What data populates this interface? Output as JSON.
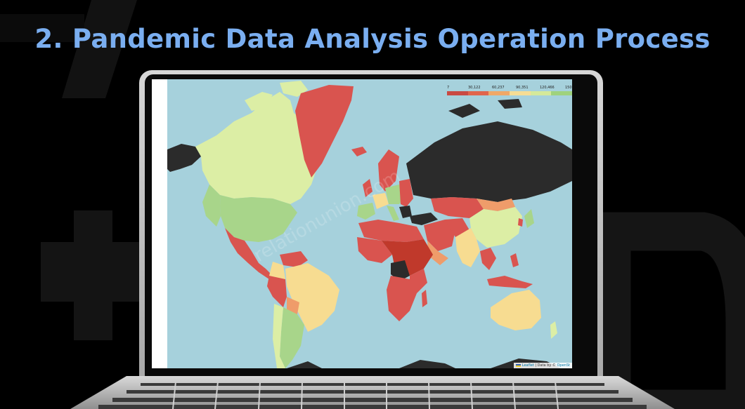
{
  "slide": {
    "title": "2. Pandemic Data Analysis Operation Process"
  },
  "map": {
    "legend": {
      "ticks": [
        "7",
        "30,122",
        "60,237",
        "90,351",
        "120,466",
        "150"
      ],
      "colors": [
        "#c94a43",
        "#e0654c",
        "#f0a868",
        "#f6dd94",
        "#d5e99a",
        "#9fd27e"
      ]
    },
    "attribution": {
      "leaflet": "Leaflet",
      "separator": " | Data by © ",
      "source": "OpenSt"
    },
    "watermark": "relationunion.com"
  },
  "colors": {
    "ocean": "#a6d1dc",
    "red": "#d9544f",
    "dark_red": "#c0392b",
    "orange": "#ef9c6a",
    "yellow": "#f7dc91",
    "light_green": "#dceea5",
    "green": "#a8d58a",
    "no_data": "#2b2b2b",
    "title": "#7aaef0"
  }
}
